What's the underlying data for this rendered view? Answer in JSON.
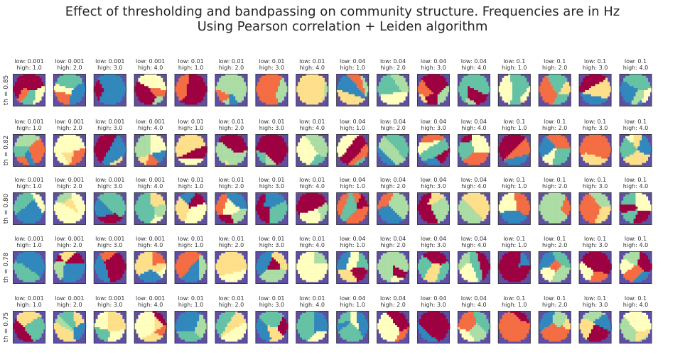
{
  "title_lines": [
    "Effect of thresholding and bandpassing on community structure.  Frequencies are in Hz",
    "Using Pearson correlation + Leiden algorithm"
  ],
  "chart_data": {
    "type": "heatmap",
    "description_of_panels": "grid of community-assignment maps, rows = threshold, columns = bandpass (low, high)",
    "rows": [
      "th = 0.85",
      "th = 0.82",
      "th = 0.80",
      "th = 0.78",
      "th = 0.75"
    ],
    "columns": [
      {
        "low": "0.001",
        "high": "1.0"
      },
      {
        "low": "0.001",
        "high": "2.0"
      },
      {
        "low": "0.001",
        "high": "3.0"
      },
      {
        "low": "0.001",
        "high": "4.0"
      },
      {
        "low": "0.01",
        "high": "1.0"
      },
      {
        "low": "0.01",
        "high": "2.0"
      },
      {
        "low": "0.01",
        "high": "3.0"
      },
      {
        "low": "0.01",
        "high": "4.0"
      },
      {
        "low": "0.04",
        "high": "1.0"
      },
      {
        "low": "0.04",
        "high": "2.0"
      },
      {
        "low": "0.04",
        "high": "3.0"
      },
      {
        "low": "0.04",
        "high": "4.0"
      },
      {
        "low": "0.1",
        "high": "1.0"
      },
      {
        "low": "0.1",
        "high": "2.0"
      },
      {
        "low": "0.1",
        "high": "3.0"
      },
      {
        "low": "0.1",
        "high": "4.0"
      }
    ],
    "colormap": [
      "#5e4fa2",
      "#9e0142",
      "#f46d43",
      "#fee08b",
      "#ffffbf",
      "#abdda4",
      "#66c2a5",
      "#3288bd"
    ],
    "background_color": "#5e4fa2",
    "panel_label_template": {
      "low_prefix": "low: ",
      "high_prefix": "high: "
    }
  }
}
